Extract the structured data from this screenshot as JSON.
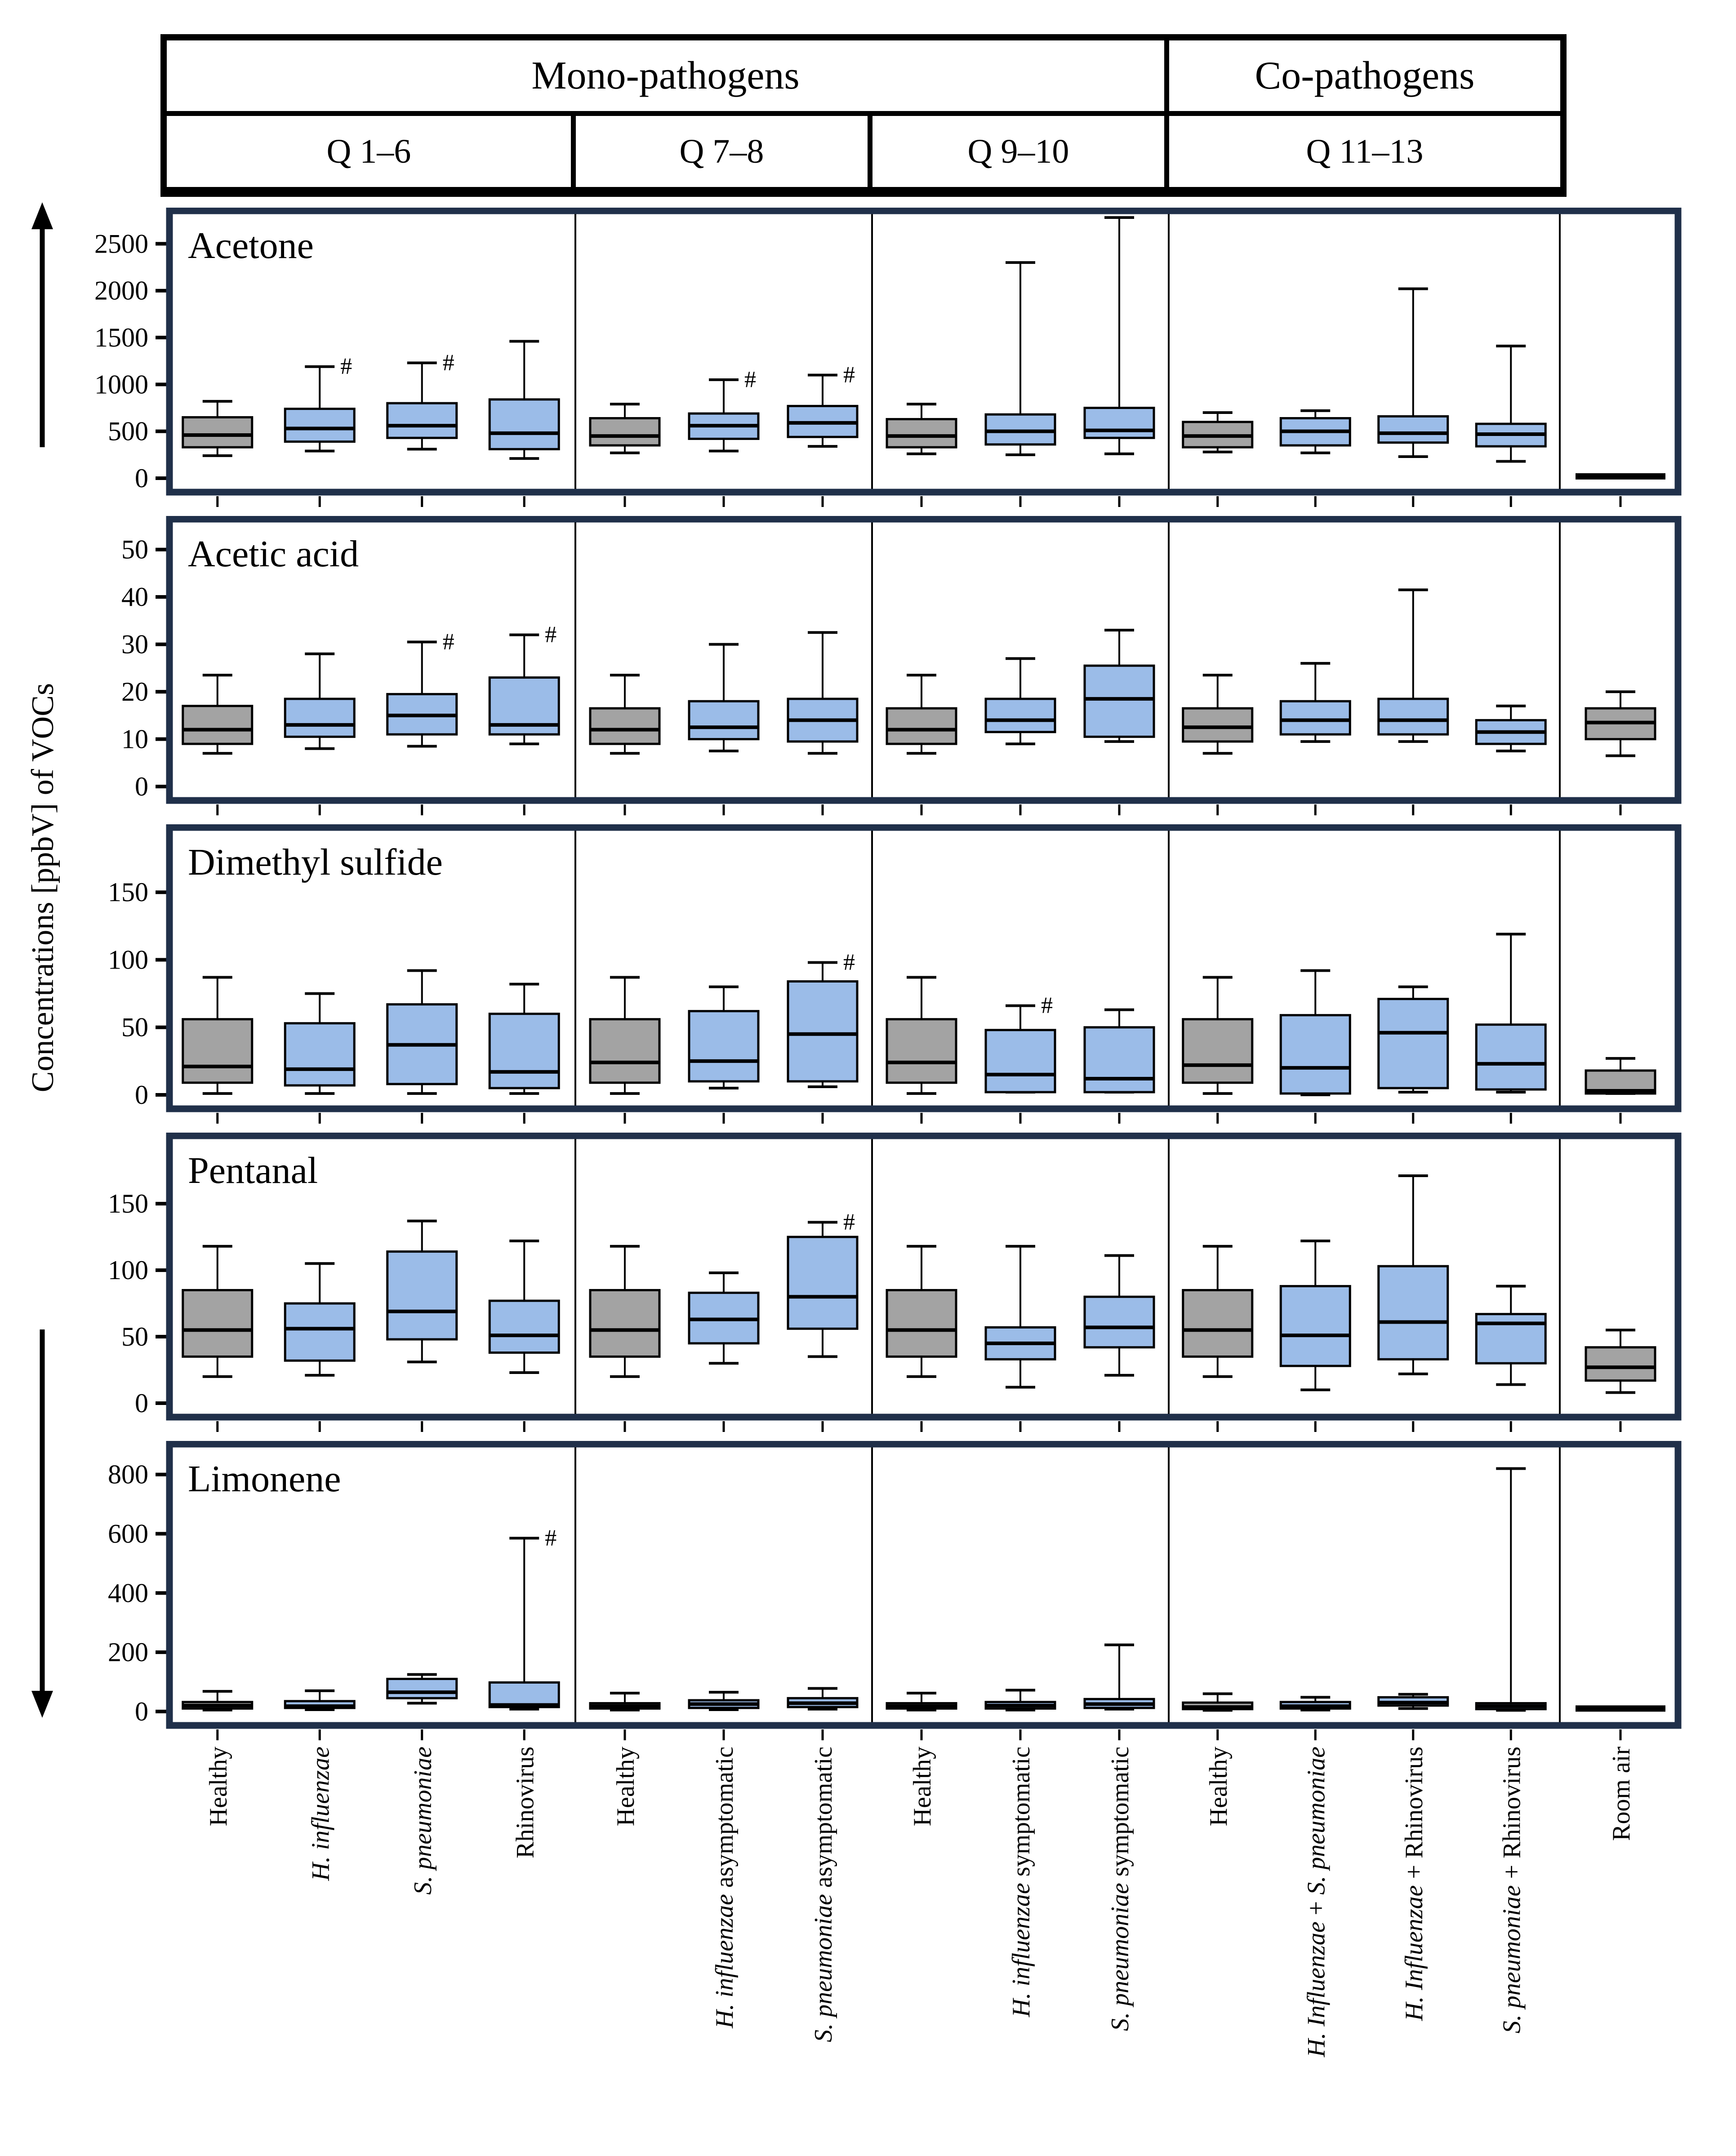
{
  "figure": {
    "y_axis_label": "Concentrations [ppbV] of VOCs",
    "header": {
      "mono": "Mono-pathogens",
      "co": "Co-pathogens",
      "q1": "Q 1–6",
      "q2": "Q 7–8",
      "q3": "Q 9–10",
      "q4": "Q 11–13"
    }
  },
  "chart_data": {
    "type": "boxplot-grid",
    "description": "Five stacked box-plot panels sharing 15 x-categories grouped as Q1-6, Q7-8, Q9-10, Q11-13 and Room air. Box stats are [whisker_low, q1, median, q3, whisker_high]; # marks significance near upper whisker.",
    "colors": {
      "gray_box": "#a3a3a3",
      "blue_box": "#9bbce8",
      "panel_border": "#20304a",
      "line": "#000000"
    },
    "group_labels": [
      "Q 1–6",
      "Q 7–8",
      "Q 9–10",
      "Q 11–13",
      "Room air"
    ],
    "categories": [
      {
        "color": "gray",
        "segments": [
          {
            "text": "Healthy",
            "italic": false
          }
        ]
      },
      {
        "color": "blue",
        "segments": [
          {
            "text": "H. influenzae",
            "italic": true
          }
        ]
      },
      {
        "color": "blue",
        "segments": [
          {
            "text": "S. pneumoniae",
            "italic": true
          }
        ]
      },
      {
        "color": "blue",
        "segments": [
          {
            "text": "Rhinovirus",
            "italic": false
          }
        ]
      },
      {
        "color": "gray",
        "segments": [
          {
            "text": "Healthy",
            "italic": false
          }
        ]
      },
      {
        "color": "blue",
        "segments": [
          {
            "text": "H. influenzae",
            "italic": true
          },
          {
            "text": " asymptomatic",
            "italic": false
          }
        ]
      },
      {
        "color": "blue",
        "segments": [
          {
            "text": "S. pneumoniae",
            "italic": true
          },
          {
            "text": " asymptomatic",
            "italic": false
          }
        ]
      },
      {
        "color": "gray",
        "segments": [
          {
            "text": "Healthy",
            "italic": false
          }
        ]
      },
      {
        "color": "blue",
        "segments": [
          {
            "text": "H. influenzae",
            "italic": true
          },
          {
            "text": " symptomatic",
            "italic": false
          }
        ]
      },
      {
        "color": "blue",
        "segments": [
          {
            "text": "S. pneumoniae",
            "italic": true
          },
          {
            "text": " symptomatic",
            "italic": false
          }
        ]
      },
      {
        "color": "gray",
        "segments": [
          {
            "text": "Healthy",
            "italic": false
          }
        ]
      },
      {
        "color": "blue",
        "segments": [
          {
            "text": "H. Influenzae",
            "italic": true
          },
          {
            "text": " + ",
            "italic": false
          },
          {
            "text": "S. pneumoniae",
            "italic": true
          }
        ]
      },
      {
        "color": "blue",
        "segments": [
          {
            "text": "H. Influenzae",
            "italic": true
          },
          {
            "text": " + ",
            "italic": false
          },
          {
            "text": "Rhinovirus",
            "italic": false
          }
        ]
      },
      {
        "color": "blue",
        "segments": [
          {
            "text": "S. pneumoniae",
            "italic": true
          },
          {
            "text": " + ",
            "italic": false
          },
          {
            "text": "Rhinovirus",
            "italic": false
          }
        ]
      },
      {
        "color": "gray",
        "segments": [
          {
            "text": "Room air",
            "italic": false
          }
        ]
      }
    ],
    "panels": [
      {
        "title": "Acetone",
        "ymax": 2780,
        "ticks": [
          0,
          500,
          1000,
          1500,
          2000,
          2500
        ],
        "boxes": [
          [
            240,
            330,
            460,
            650,
            820
          ],
          [
            290,
            390,
            530,
            740,
            1190
          ],
          [
            310,
            430,
            560,
            800,
            1230
          ],
          [
            210,
            310,
            480,
            840,
            1460
          ],
          [
            270,
            350,
            450,
            640,
            790
          ],
          [
            290,
            420,
            560,
            690,
            1050
          ],
          [
            340,
            440,
            590,
            770,
            1100
          ],
          [
            260,
            330,
            450,
            630,
            790
          ],
          [
            250,
            360,
            500,
            680,
            2300
          ],
          [
            260,
            430,
            510,
            750,
            2780
          ],
          [
            280,
            330,
            450,
            600,
            700
          ],
          [
            270,
            350,
            500,
            640,
            720
          ],
          [
            230,
            380,
            480,
            660,
            2020
          ],
          [
            180,
            340,
            470,
            580,
            1410
          ],
          [
            20,
            20,
            20,
            20,
            20
          ]
        ],
        "hash": [
          1,
          2,
          5,
          6
        ]
      },
      {
        "title": "Acetic acid",
        "ymax": 55,
        "ticks": [
          0,
          10,
          20,
          30,
          40,
          50
        ],
        "boxes": [
          [
            7,
            9,
            12,
            17,
            23.5
          ],
          [
            8,
            10.5,
            13,
            18.5,
            28
          ],
          [
            8.5,
            11,
            15,
            19.5,
            30.5
          ],
          [
            9,
            11,
            13,
            23,
            32
          ],
          [
            7,
            9,
            12,
            16.5,
            23.5
          ],
          [
            7.5,
            10,
            12.5,
            18,
            30
          ],
          [
            7,
            9.5,
            14,
            18.5,
            32.5
          ],
          [
            7,
            9,
            12,
            16.5,
            23.5
          ],
          [
            9,
            11.5,
            14,
            18.5,
            27
          ],
          [
            9.5,
            10.5,
            18.5,
            25.5,
            33
          ],
          [
            7,
            9.5,
            12.5,
            16.5,
            23.5
          ],
          [
            9.5,
            11,
            14,
            18,
            26
          ],
          [
            9.5,
            11,
            14,
            18.5,
            41.5
          ],
          [
            7.5,
            9,
            11.5,
            14,
            17
          ],
          [
            6.5,
            10,
            13.5,
            16.5,
            20
          ]
        ],
        "hash": [
          2,
          3
        ]
      },
      {
        "title": "Dimethyl sulfide",
        "ymax": 193,
        "ticks": [
          0,
          50,
          100,
          150
        ],
        "boxes": [
          [
            1,
            9,
            21,
            56,
            87
          ],
          [
            1,
            7,
            19,
            53,
            75
          ],
          [
            1,
            8,
            37,
            67,
            92
          ],
          [
            1,
            5,
            17,
            60,
            82
          ],
          [
            1,
            9,
            24,
            56,
            87
          ],
          [
            5,
            10,
            25,
            62,
            80
          ],
          [
            6,
            10,
            45,
            84,
            98
          ],
          [
            1,
            9,
            24,
            56,
            87
          ],
          [
            2,
            2,
            15,
            48,
            66
          ],
          [
            2,
            2,
            12,
            50,
            63
          ],
          [
            1,
            9,
            22,
            56,
            87
          ],
          [
            0,
            1,
            20,
            59,
            92
          ],
          [
            2,
            5,
            46,
            71,
            80
          ],
          [
            2,
            4,
            23,
            52,
            119
          ],
          [
            1,
            1,
            3,
            18,
            27
          ]
        ],
        "hash": [
          6,
          8
        ]
      },
      {
        "title": "Pentanal",
        "ymax": 196,
        "ticks": [
          0,
          50,
          100,
          150
        ],
        "boxes": [
          [
            20,
            35,
            55,
            85,
            118
          ],
          [
            21,
            32,
            56,
            75,
            105
          ],
          [
            31,
            48,
            69,
            114,
            137
          ],
          [
            23,
            38,
            51,
            77,
            122
          ],
          [
            20,
            35,
            55,
            85,
            118
          ],
          [
            30,
            45,
            63,
            83,
            98
          ],
          [
            35,
            56,
            80,
            125,
            136
          ],
          [
            20,
            35,
            55,
            85,
            118
          ],
          [
            12,
            33,
            45,
            57,
            118
          ],
          [
            21,
            42,
            57,
            80,
            111
          ],
          [
            20,
            35,
            55,
            85,
            118
          ],
          [
            10,
            28,
            51,
            88,
            122
          ],
          [
            22,
            33,
            61,
            103,
            171
          ],
          [
            14,
            30,
            60,
            67,
            88
          ],
          [
            8,
            17,
            27,
            42,
            55
          ]
        ],
        "hash": [
          6
        ]
      },
      {
        "title": "Limonene",
        "ymax": 880,
        "ticks": [
          0,
          200,
          400,
          600,
          800
        ],
        "boxes": [
          [
            5,
            10,
            20,
            32,
            68
          ],
          [
            6,
            12,
            18,
            35,
            70
          ],
          [
            28,
            45,
            65,
            110,
            125
          ],
          [
            8,
            15,
            22,
            98,
            585
          ],
          [
            5,
            10,
            18,
            28,
            62
          ],
          [
            6,
            12,
            25,
            38,
            65
          ],
          [
            8,
            15,
            28,
            45,
            78
          ],
          [
            5,
            10,
            18,
            28,
            62
          ],
          [
            5,
            10,
            20,
            32,
            72
          ],
          [
            8,
            12,
            25,
            42,
            225
          ],
          [
            4,
            8,
            15,
            30,
            60
          ],
          [
            5,
            10,
            18,
            32,
            48
          ],
          [
            10,
            20,
            30,
            48,
            58
          ],
          [
            4,
            8,
            18,
            28,
            820
          ],
          [
            10,
            10,
            10,
            10,
            10
          ]
        ],
        "hash": [
          3
        ]
      }
    ]
  }
}
